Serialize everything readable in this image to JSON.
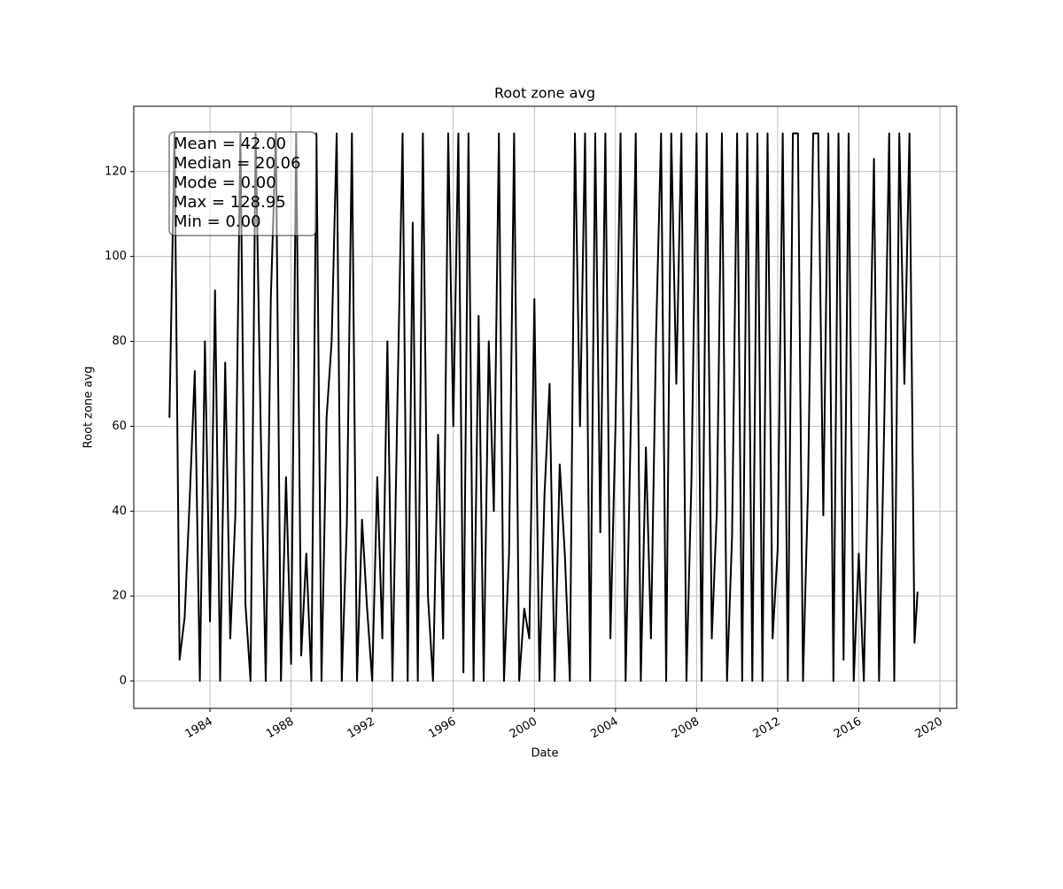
{
  "chart_data": {
    "type": "line",
    "title": "Root zone avg",
    "xlabel": "Date",
    "ylabel": "Root zone avg",
    "annotation": [
      "Mean = 42.00",
      "Median = 20.06",
      "Mode = 0.00",
      "Max = 128.95",
      "Min = 0.00"
    ],
    "color": "#000000",
    "grid": true,
    "xlim": [
      1980.24,
      2020.83
    ],
    "ylim": [
      -6.47,
      135.4
    ],
    "xticks": [
      1984,
      1988,
      1992,
      1996,
      2000,
      2004,
      2008,
      2012,
      2016,
      2020
    ],
    "yticks": [
      0,
      20,
      40,
      60,
      80,
      100,
      120
    ],
    "x": [
      1982,
      1982.25,
      1982.5,
      1982.75,
      1983,
      1983.25,
      1983.5,
      1983.75,
      1984,
      1984.25,
      1984.5,
      1984.75,
      1985,
      1985.25,
      1985.5,
      1985.75,
      1986,
      1986.25,
      1986.5,
      1986.75,
      1987,
      1987.25,
      1987.5,
      1987.75,
      1988,
      1988.25,
      1988.5,
      1988.75,
      1989,
      1989.25,
      1989.5,
      1989.75,
      1990,
      1990.25,
      1990.5,
      1990.75,
      1991,
      1991.25,
      1991.5,
      1991.75,
      1992,
      1992.25,
      1992.5,
      1992.75,
      1993,
      1993.25,
      1993.5,
      1993.75,
      1994,
      1994.25,
      1994.5,
      1994.75,
      1995,
      1995.25,
      1995.5,
      1995.75,
      1996,
      1996.25,
      1996.5,
      1996.75,
      1997,
      1997.25,
      1997.5,
      1997.75,
      1998,
      1998.25,
      1998.5,
      1998.75,
      1999,
      1999.25,
      1999.5,
      1999.75,
      2000,
      2000.25,
      2000.5,
      2000.75,
      2001,
      2001.25,
      2001.5,
      2001.75,
      2002,
      2002.25,
      2002.5,
      2002.75,
      2003,
      2003.25,
      2003.5,
      2003.75,
      2004,
      2004.25,
      2004.5,
      2004.75,
      2005,
      2005.25,
      2005.5,
      2005.75,
      2006,
      2006.25,
      2006.5,
      2006.75,
      2007,
      2007.25,
      2007.5,
      2007.75,
      2008,
      2008.25,
      2008.5,
      2008.75,
      2009,
      2009.25,
      2009.5,
      2009.75,
      2010,
      2010.25,
      2010.5,
      2010.75,
      2011,
      2011.25,
      2011.5,
      2011.75,
      2012,
      2012.25,
      2012.5,
      2012.75,
      2013,
      2013.25,
      2013.5,
      2013.75,
      2014,
      2014.25,
      2014.5,
      2014.75,
      2015,
      2015.25,
      2015.5,
      2015.75,
      2016,
      2016.25,
      2016.5,
      2016.75,
      2017,
      2017.25,
      2017.5,
      2017.75,
      2018,
      2018.25,
      2018.5,
      2018.75,
      2018.9
    ],
    "values": [
      62,
      129,
      5,
      15,
      43,
      73,
      0,
      80,
      14,
      92,
      0,
      75,
      10,
      39,
      129,
      18,
      0,
      129,
      60,
      0,
      90,
      129,
      0,
      48,
      4,
      129,
      6,
      30,
      0,
      129,
      0,
      62,
      80,
      129,
      0,
      37,
      129,
      0,
      38,
      17,
      0,
      48,
      10,
      80,
      0,
      67,
      129,
      0,
      108,
      0,
      129,
      20,
      0,
      58,
      10,
      129,
      60,
      129,
      2,
      129,
      0,
      86,
      0,
      80,
      40,
      129,
      0,
      30,
      129,
      0,
      17,
      10,
      90,
      0,
      44,
      70,
      0,
      51,
      30,
      0,
      129,
      60,
      129,
      0,
      129,
      35,
      129,
      10,
      60,
      129,
      0,
      59,
      129,
      0,
      55,
      10,
      81,
      129,
      0,
      129,
      70,
      129,
      0,
      48,
      129,
      0,
      129,
      10,
      40,
      129,
      0,
      34,
      129,
      0,
      129,
      0,
      129,
      0,
      129,
      10,
      31,
      129,
      0,
      129,
      129,
      0,
      46,
      129,
      129,
      39,
      129,
      0,
      129,
      5,
      129,
      0,
      30,
      0,
      60,
      123,
      0,
      59,
      129,
      0,
      129,
      70,
      129,
      9,
      21
    ]
  }
}
